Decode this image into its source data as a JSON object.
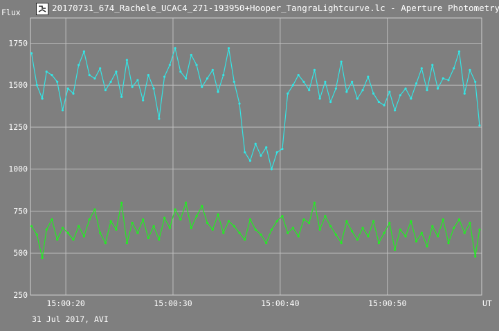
{
  "window": {
    "title": "20170731_674_Rachele_UCAC4_271-193950+Hooper_TangraLightcurve.lc - Aperture Photometry,",
    "icon": "tangra-app-icon"
  },
  "colors": {
    "background": "#7f7f7f",
    "grid": "#bfbfbf",
    "series_1": "#33e6e6",
    "series_2": "#22ee22",
    "text": "#ffffff"
  },
  "chart_data": {
    "type": "line",
    "ylabel": "Flux",
    "xlabel": "UT",
    "footer": "31 Jul 2017, AVI",
    "ylim": [
      250,
      1900
    ],
    "xlim": [
      16.7,
      58.8
    ],
    "yticks": [
      250,
      500,
      750,
      1000,
      1250,
      1500,
      1750
    ],
    "ytick_labels": [
      "250",
      "500",
      "750",
      "1000",
      "1250",
      "1500",
      "1750"
    ],
    "xticks": [
      20,
      30,
      40,
      50
    ],
    "xtick_labels": [
      "15:00:20",
      "15:00:30",
      "15:00:40",
      "15:00:50"
    ],
    "x_unit": "seconds after 15:00:00 UT",
    "grid": true,
    "series": [
      {
        "key": "target",
        "color": "#33e6e6",
        "x": [
          16.8,
          17.3,
          17.8,
          18.2,
          18.7,
          19.2,
          19.7,
          20.2,
          20.7,
          21.2,
          21.7,
          22.2,
          22.7,
          23.2,
          23.7,
          24.2,
          24.7,
          25.2,
          25.7,
          26.2,
          26.7,
          27.2,
          27.7,
          28.2,
          28.7,
          29.2,
          29.7,
          30.2,
          30.7,
          31.2,
          31.7,
          32.2,
          32.7,
          33.2,
          33.7,
          34.2,
          34.7,
          35.2,
          35.7,
          36.2,
          36.7,
          37.2,
          37.7,
          38.2,
          38.7,
          39.2,
          39.7,
          40.2,
          40.7,
          41.2,
          41.7,
          42.2,
          42.7,
          43.2,
          43.7,
          44.2,
          44.7,
          45.2,
          45.7,
          46.2,
          46.7,
          47.2,
          47.7,
          48.2,
          48.7,
          49.2,
          49.7,
          50.2,
          50.7,
          51.2,
          51.7,
          52.2,
          52.7,
          53.2,
          53.7,
          54.2,
          54.7,
          55.2,
          55.7,
          56.2,
          56.7,
          57.2,
          57.7,
          58.2,
          58.6
        ],
        "values": [
          1690,
          1500,
          1420,
          1580,
          1560,
          1520,
          1350,
          1480,
          1450,
          1620,
          1700,
          1560,
          1540,
          1600,
          1470,
          1520,
          1580,
          1430,
          1650,
          1490,
          1530,
          1410,
          1560,
          1480,
          1300,
          1550,
          1620,
          1720,
          1580,
          1540,
          1680,
          1620,
          1490,
          1540,
          1590,
          1460,
          1560,
          1720,
          1520,
          1390,
          1100,
          1050,
          1150,
          1080,
          1130,
          1000,
          1100,
          1120,
          1450,
          1500,
          1560,
          1520,
          1470,
          1590,
          1420,
          1520,
          1400,
          1480,
          1640,
          1460,
          1520,
          1420,
          1470,
          1550,
          1450,
          1400,
          1380,
          1460,
          1350,
          1440,
          1480,
          1420,
          1510,
          1600,
          1470,
          1620,
          1480,
          1540,
          1530,
          1600,
          1700,
          1450,
          1590,
          1520,
          1260
        ]
      },
      {
        "key": "comparison",
        "color": "#22ee22",
        "x": [
          16.8,
          17.3,
          17.8,
          18.2,
          18.7,
          19.2,
          19.7,
          20.2,
          20.7,
          21.2,
          21.7,
          22.2,
          22.7,
          23.2,
          23.7,
          24.2,
          24.7,
          25.2,
          25.7,
          26.2,
          26.7,
          27.2,
          27.7,
          28.2,
          28.7,
          29.2,
          29.7,
          30.2,
          30.7,
          31.2,
          31.7,
          32.2,
          32.7,
          33.2,
          33.7,
          34.2,
          34.7,
          35.2,
          35.7,
          36.2,
          36.7,
          37.2,
          37.7,
          38.2,
          38.7,
          39.2,
          39.7,
          40.2,
          40.7,
          41.2,
          41.7,
          42.2,
          42.7,
          43.2,
          43.7,
          44.2,
          44.7,
          45.2,
          45.7,
          46.2,
          46.7,
          47.2,
          47.7,
          48.2,
          48.7,
          49.2,
          49.7,
          50.2,
          50.7,
          51.2,
          51.7,
          52.2,
          52.7,
          53.2,
          53.7,
          54.2,
          54.7,
          55.2,
          55.7,
          56.2,
          56.7,
          57.2,
          57.7,
          58.2,
          58.6
        ],
        "values": [
          660,
          610,
          470,
          640,
          700,
          580,
          650,
          620,
          580,
          660,
          600,
          700,
          760,
          620,
          560,
          690,
          640,
          800,
          560,
          680,
          620,
          700,
          590,
          660,
          580,
          710,
          650,
          760,
          700,
          800,
          650,
          720,
          780,
          680,
          640,
          730,
          620,
          690,
          660,
          620,
          580,
          700,
          640,
          610,
          560,
          640,
          690,
          720,
          620,
          650,
          600,
          700,
          680,
          800,
          640,
          720,
          660,
          610,
          560,
          690,
          630,
          580,
          650,
          600,
          690,
          560,
          620,
          680,
          520,
          640,
          600,
          690,
          570,
          620,
          540,
          660,
          600,
          700,
          560,
          650,
          700,
          620,
          680,
          480,
          640
        ]
      }
    ]
  }
}
